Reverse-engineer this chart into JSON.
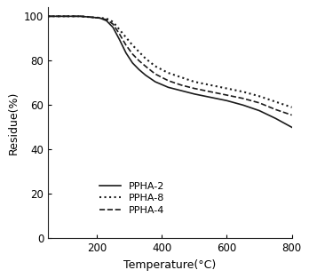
{
  "title": "",
  "xlabel": "Temperature(°C)",
  "ylabel": "Residue(%)",
  "xlim": [
    50,
    800
  ],
  "ylim": [
    0,
    104
  ],
  "xticks": [
    200,
    400,
    600,
    800
  ],
  "yticks": [
    0,
    20,
    40,
    60,
    80,
    100
  ],
  "background_color": "#ffffff",
  "series": [
    {
      "label": "PPHA-2",
      "linestyle": "solid",
      "color": "#1a1a1a",
      "linewidth": 1.2,
      "x": [
        50,
        150,
        190,
        210,
        230,
        250,
        270,
        290,
        310,
        330,
        350,
        380,
        420,
        460,
        500,
        550,
        600,
        650,
        700,
        750,
        800
      ],
      "y": [
        100,
        100,
        99.5,
        99.2,
        98.0,
        95.0,
        89.5,
        83.5,
        79.0,
        76.0,
        73.5,
        70.5,
        68.0,
        66.5,
        65.0,
        63.5,
        62.0,
        60.0,
        57.5,
        54.0,
        50.0
      ]
    },
    {
      "label": "PPHA-8",
      "linestyle": "dotted",
      "color": "#1a1a1a",
      "linewidth": 1.5,
      "x": [
        50,
        150,
        190,
        210,
        230,
        250,
        270,
        290,
        310,
        330,
        350,
        380,
        420,
        460,
        500,
        550,
        600,
        650,
        700,
        750,
        800
      ],
      "y": [
        100,
        100,
        99.5,
        99.3,
        99.0,
        97.5,
        94.0,
        90.5,
        87.0,
        84.0,
        81.0,
        77.5,
        74.5,
        72.5,
        70.5,
        69.0,
        67.5,
        66.0,
        64.0,
        61.5,
        59.0
      ]
    },
    {
      "label": "PPHA-4",
      "linestyle": "dashed",
      "color": "#1a1a1a",
      "linewidth": 1.2,
      "x": [
        50,
        150,
        190,
        210,
        230,
        250,
        270,
        290,
        310,
        330,
        350,
        380,
        420,
        460,
        500,
        550,
        600,
        650,
        700,
        750,
        800
      ],
      "y": [
        100,
        100,
        99.5,
        99.2,
        98.5,
        96.5,
        92.0,
        87.0,
        83.0,
        80.0,
        77.5,
        74.0,
        71.0,
        69.0,
        67.5,
        66.0,
        64.5,
        63.0,
        61.0,
        58.0,
        55.5
      ]
    }
  ],
  "font_size": 9,
  "tick_font_size": 8.5
}
